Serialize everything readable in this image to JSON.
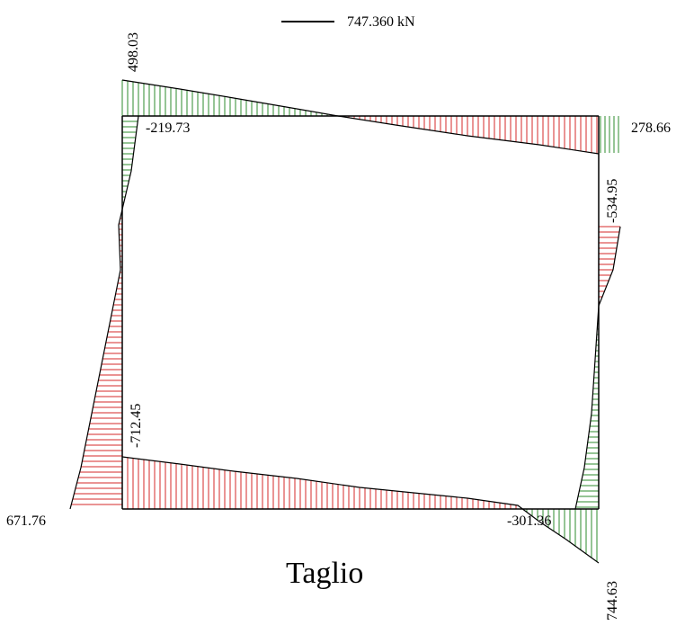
{
  "legend": {
    "scale_label": "747.360 kN"
  },
  "title": "Taglio",
  "colors": {
    "positive": "#2e8b2e",
    "negative": "#d62828",
    "outline": "#000000",
    "frame": "#000000"
  },
  "values": {
    "top_left": "498.03",
    "top_left_neg": "-219.73",
    "top_right": "278.66",
    "right_top": "-534.95",
    "left_bottom_neg": "-712.45",
    "bottom_left": "671.76",
    "bottom_right_neg": "-301.36",
    "bottom_right": "744.63"
  }
}
